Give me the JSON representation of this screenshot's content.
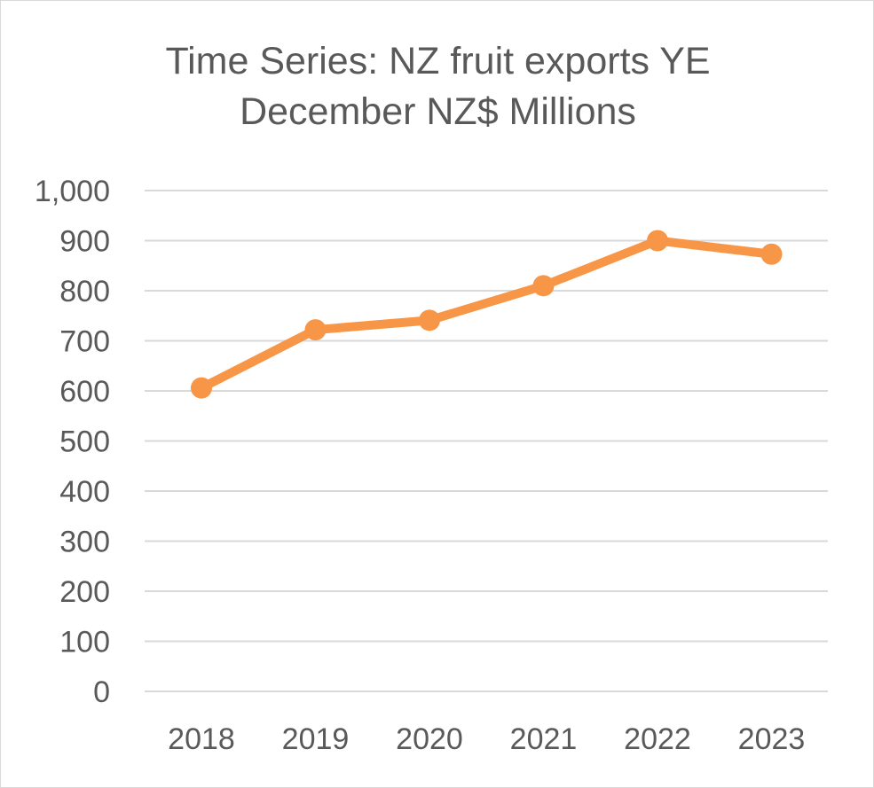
{
  "chart_data": {
    "type": "line",
    "title_lines": [
      "Time Series: NZ fruit exports YE",
      "December NZ$ Millions"
    ],
    "categories": [
      "2018",
      "2019",
      "2020",
      "2021",
      "2022",
      "2023"
    ],
    "series": [
      {
        "values": [
          606,
          722,
          741,
          810,
          900,
          873
        ]
      }
    ],
    "xlabel": "",
    "ylabel": "",
    "ylim": [
      0,
      1000
    ],
    "y_ticks": [
      0,
      100,
      200,
      300,
      400,
      500,
      600,
      700,
      800,
      900,
      1000
    ],
    "y_tick_labels": [
      "0",
      "100",
      "200",
      "300",
      "400",
      "500",
      "600",
      "700",
      "800",
      "900",
      "1,000"
    ],
    "grid": true,
    "legend": "none",
    "colors": {
      "series": "#F79646",
      "grid": "#d9d9d9",
      "text": "#595959"
    }
  }
}
